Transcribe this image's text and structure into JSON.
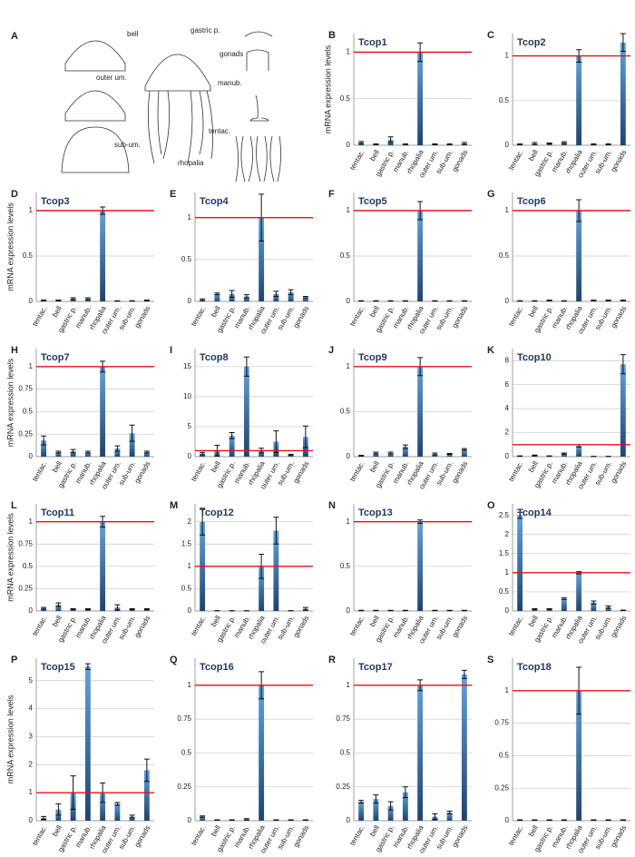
{
  "diagram": {
    "panel": "A",
    "labels": [
      "bell",
      "gastric p.",
      "gonads",
      "outer um.",
      "manub.",
      "sub-um.",
      "tentac.",
      "rhopalia"
    ]
  },
  "chart_data": [
    {
      "type": "bar",
      "panel": "B",
      "title": "Tcop1",
      "y_label": "mRNA expression levels",
      "categories": [
        "tentac.",
        "bell",
        "gastric p.",
        "manub.",
        "rhopalia",
        "outer um.",
        "sub-um.",
        "gonads"
      ],
      "values": [
        0.03,
        0.01,
        0.06,
        0.01,
        1.0,
        0.01,
        0.01,
        0.02
      ],
      "errors": [
        0.01,
        0.005,
        0.03,
        0.005,
        0.1,
        0.005,
        0.005,
        0.01
      ],
      "ylim": [
        0,
        1.2
      ],
      "yticks": [
        0,
        0.5,
        1
      ],
      "grid": true,
      "reference_line": 1,
      "reference_color": "#e8101a"
    },
    {
      "type": "bar",
      "panel": "C",
      "title": "Tcop2",
      "categories": [
        "tentac.",
        "bell",
        "gastric p.",
        "manub.",
        "rhopalia",
        "outer um.",
        "sub-um.",
        "gonads"
      ],
      "values": [
        0.01,
        0.02,
        0.02,
        0.03,
        1.0,
        0.01,
        0.01,
        1.15
      ],
      "errors": [
        0.005,
        0.01,
        0.005,
        0.01,
        0.07,
        0.005,
        0.005,
        0.1
      ],
      "ylim": [
        0,
        1.25
      ],
      "yticks": [
        0,
        0.5,
        1
      ],
      "grid": true,
      "reference_line": 1,
      "reference_color": "#e8101a"
    },
    {
      "type": "bar",
      "panel": "D",
      "title": "Tcop3",
      "y_label": "mRNA expression levels",
      "categories": [
        "tentac.",
        "bell",
        "gastric p.",
        "manub.",
        "rhopalia",
        "outer um.",
        "sub-um.",
        "gonads"
      ],
      "values": [
        0.01,
        0.01,
        0.03,
        0.03,
        1.0,
        0.005,
        0.005,
        0.01
      ],
      "errors": [
        0.005,
        0.005,
        0.01,
        0.01,
        0.04,
        0.002,
        0.002,
        0.005
      ],
      "ylim": [
        0,
        1.2
      ],
      "yticks": [
        0,
        0.5,
        1
      ],
      "grid": true,
      "reference_line": 1,
      "reference_color": "#e8101a"
    },
    {
      "type": "bar",
      "panel": "E",
      "title": "Tcop4",
      "categories": [
        "tentac.",
        "bell",
        "gastric p.",
        "manub.",
        "rhopalia",
        "outer um.",
        "sub-um.",
        "gonads"
      ],
      "values": [
        0.02,
        0.09,
        0.09,
        0.06,
        1.0,
        0.09,
        0.11,
        0.05
      ],
      "errors": [
        0.01,
        0.01,
        0.04,
        0.02,
        0.28,
        0.03,
        0.03,
        0.01
      ],
      "ylim": [
        0,
        1.3
      ],
      "yticks": [
        0,
        0.5,
        1
      ],
      "grid": true,
      "reference_line": 1,
      "reference_color": "#e8101a"
    },
    {
      "type": "bar",
      "panel": "F",
      "title": "Tcop5",
      "categories": [
        "tentac.",
        "bell",
        "gastric p.",
        "manub.",
        "rhopalia",
        "outer um.",
        "sub-um.",
        "gonads"
      ],
      "values": [
        0.005,
        0.005,
        0.005,
        0.005,
        1.0,
        0.005,
        0.005,
        0.005
      ],
      "errors": [
        0.002,
        0.002,
        0.002,
        0.002,
        0.1,
        0.002,
        0.002,
        0.002
      ],
      "ylim": [
        0,
        1.2
      ],
      "yticks": [
        0,
        0.5,
        1
      ],
      "grid": true,
      "reference_line": 1,
      "reference_color": "#e8101a"
    },
    {
      "type": "bar",
      "panel": "G",
      "title": "Tcop6",
      "categories": [
        "tentac.",
        "bell",
        "gastric p.",
        "manub.",
        "rhopalia",
        "outer um.",
        "sub-um.",
        "gonads"
      ],
      "values": [
        0.005,
        0.005,
        0.01,
        0.005,
        1.0,
        0.01,
        0.01,
        0.01
      ],
      "errors": [
        0.002,
        0.002,
        0.005,
        0.002,
        0.12,
        0.005,
        0.005,
        0.005
      ],
      "ylim": [
        0,
        1.2
      ],
      "yticks": [
        0,
        0.5,
        1
      ],
      "grid": true,
      "reference_line": 1,
      "reference_color": "#e8101a"
    },
    {
      "type": "bar",
      "panel": "H",
      "title": "Tcop7",
      "y_label": "mRNA expression levels",
      "categories": [
        "tentac.",
        "bell",
        "gastric p.",
        "manub.",
        "rhopalia",
        "outer um.",
        "sub-um.",
        "gonads"
      ],
      "values": [
        0.18,
        0.05,
        0.06,
        0.05,
        1.0,
        0.09,
        0.26,
        0.05
      ],
      "errors": [
        0.05,
        0.01,
        0.02,
        0.01,
        0.06,
        0.03,
        0.09,
        0.01
      ],
      "ylim": [
        0,
        1.2
      ],
      "yticks": [
        0,
        0.25,
        0.5,
        0.75,
        1
      ],
      "grid": true,
      "reference_line": 1,
      "reference_color": "#e8101a"
    },
    {
      "type": "bar",
      "panel": "I",
      "title": "Tcop8",
      "categories": [
        "tentac.",
        "bell",
        "gastric p.",
        "manub.",
        "rhopalia",
        "outer um.",
        "sub-um.",
        "gonads"
      ],
      "values": [
        0.5,
        1.0,
        3.5,
        15,
        1.0,
        2.5,
        0.3,
        3.3
      ],
      "errors": [
        0.2,
        0.9,
        0.5,
        1.6,
        0.4,
        1.8,
        0.1,
        1.8
      ],
      "ylim": [
        0,
        18
      ],
      "yticks": [
        0,
        5,
        10,
        15
      ],
      "grid": true,
      "reference_line": 1,
      "reference_color": "#e8101a"
    },
    {
      "type": "bar",
      "panel": "J",
      "title": "Tcop9",
      "categories": [
        "tentac.",
        "bell",
        "gastric p.",
        "manub.",
        "rhopalia",
        "outer um.",
        "sub-um.",
        "gonads"
      ],
      "values": [
        0.01,
        0.04,
        0.04,
        0.11,
        1.0,
        0.03,
        0.03,
        0.08
      ],
      "errors": [
        0.005,
        0.01,
        0.01,
        0.02,
        0.1,
        0.01,
        0.005,
        0.01
      ],
      "ylim": [
        0,
        1.2
      ],
      "yticks": [
        0,
        0.5,
        1
      ],
      "grid": true,
      "reference_line": 1,
      "reference_color": "#e8101a"
    },
    {
      "type": "bar",
      "panel": "K",
      "title": "Tcop10",
      "categories": [
        "tentac.",
        "bell",
        "gastric p.",
        "manub.",
        "rhopalia",
        "outer um.",
        "sub-um.",
        "gonads"
      ],
      "values": [
        0.05,
        0.1,
        0.05,
        0.25,
        0.9,
        0.02,
        0.02,
        7.7
      ],
      "errors": [
        0.02,
        0.03,
        0.02,
        0.05,
        0.1,
        0.01,
        0.01,
        0.8
      ],
      "ylim": [
        0,
        9
      ],
      "yticks": [
        0,
        2,
        4,
        6,
        8
      ],
      "grid": true,
      "reference_line": 1,
      "reference_color": "#e8101a"
    },
    {
      "type": "bar",
      "panel": "L",
      "title": "Tcop11",
      "y_label": "mRNA expression levels",
      "categories": [
        "tentac.",
        "bell",
        "gastric p.",
        "manub.",
        "rhopalia",
        "outer um.",
        "sub-um.",
        "gonads"
      ],
      "values": [
        0.03,
        0.07,
        0.02,
        0.02,
        1.0,
        0.04,
        0.02,
        0.02
      ],
      "errors": [
        0.01,
        0.02,
        0.005,
        0.005,
        0.06,
        0.03,
        0.005,
        0.005
      ],
      "ylim": [
        0,
        1.2
      ],
      "yticks": [
        0,
        0.25,
        0.5,
        0.75,
        1
      ],
      "grid": true,
      "reference_line": 1,
      "reference_color": "#e8101a"
    },
    {
      "type": "bar",
      "panel": "M",
      "title": "Tcop12",
      "categories": [
        "tentac.",
        "bell",
        "gastric p.",
        "manub.",
        "rhopalia",
        "outer um.",
        "sub-um.",
        "gonads"
      ],
      "values": [
        2.0,
        0.005,
        0.005,
        0.005,
        1.0,
        1.8,
        0.005,
        0.05
      ],
      "errors": [
        0.3,
        0.002,
        0.002,
        0.002,
        0.27,
        0.3,
        0.002,
        0.03
      ],
      "ylim": [
        0,
        2.4
      ],
      "yticks": [
        0,
        0.5,
        1,
        1.5,
        2
      ],
      "grid": true,
      "reference_line": 1,
      "reference_color": "#e8101a"
    },
    {
      "type": "bar",
      "panel": "N",
      "title": "Tcop13",
      "categories": [
        "tentac.",
        "bell",
        "gastric p.",
        "manub.",
        "rhopalia",
        "outer um.",
        "sub-um.",
        "gonads"
      ],
      "values": [
        0.005,
        0.005,
        0.005,
        0.005,
        1.0,
        0.005,
        0.005,
        0.005
      ],
      "errors": [
        0.002,
        0.002,
        0.002,
        0.002,
        0.02,
        0.002,
        0.002,
        0.002
      ],
      "ylim": [
        0,
        1.2
      ],
      "yticks": [
        0,
        0.5,
        1
      ],
      "grid": true,
      "reference_line": 1,
      "reference_color": "#e8101a"
    },
    {
      "type": "bar",
      "panel": "O",
      "title": "Tcop14",
      "categories": [
        "tentac.",
        "bell",
        "gastric p.",
        "manub.",
        "rhopalia",
        "outer um.",
        "sub-um.",
        "gonads"
      ],
      "values": [
        2.5,
        0.05,
        0.05,
        0.32,
        1.0,
        0.22,
        0.1,
        0.02
      ],
      "errors": [
        0.08,
        0.01,
        0.01,
        0.02,
        0.03,
        0.04,
        0.03,
        0.005
      ],
      "ylim": [
        0,
        2.8
      ],
      "yticks": [
        0,
        0.5,
        1,
        1.5,
        2,
        2.5
      ],
      "grid": true,
      "reference_line": 1,
      "reference_color": "#e8101a"
    },
    {
      "type": "bar",
      "panel": "P",
      "title": "Tcop15",
      "y_label": "mRNA expression levels",
      "categories": [
        "tentac.",
        "bell",
        "gastric p.",
        "manub.",
        "rhopalia",
        "outer um.",
        "sub-um.",
        "gonads"
      ],
      "values": [
        0.1,
        0.4,
        1.0,
        5.5,
        1.0,
        0.6,
        0.15,
        1.8
      ],
      "errors": [
        0.05,
        0.2,
        0.6,
        0.1,
        0.35,
        0.05,
        0.05,
        0.4
      ],
      "ylim": [
        0,
        5.8
      ],
      "yticks": [
        0,
        1,
        2,
        3,
        4,
        5
      ],
      "grid": true,
      "reference_line": 1,
      "reference_color": "#e8101a"
    },
    {
      "type": "bar",
      "panel": "Q",
      "title": "Tcop16",
      "categories": [
        "tentac.",
        "bell",
        "gastric p.",
        "manub.",
        "rhopalia",
        "outer um.",
        "sub-um.",
        "gonads"
      ],
      "values": [
        0.03,
        0.005,
        0.005,
        0.01,
        1.0,
        0.005,
        0.005,
        0.005
      ],
      "errors": [
        0.005,
        0.002,
        0.002,
        0.005,
        0.1,
        0.002,
        0.002,
        0.002
      ],
      "ylim": [
        0,
        1.2
      ],
      "yticks": [
        0,
        0.25,
        0.5,
        0.75,
        1
      ],
      "grid": true,
      "reference_line": 1,
      "reference_color": "#e8101a"
    },
    {
      "type": "bar",
      "panel": "R",
      "title": "Tcop17",
      "categories": [
        "tentac.",
        "bell",
        "gastric p.",
        "manub.",
        "rhopalia",
        "outer um.",
        "sub-um.",
        "gonads"
      ],
      "values": [
        0.14,
        0.16,
        0.11,
        0.21,
        1.0,
        0.03,
        0.06,
        1.08
      ],
      "errors": [
        0.01,
        0.03,
        0.03,
        0.04,
        0.04,
        0.02,
        0.01,
        0.03
      ],
      "ylim": [
        0,
        1.2
      ],
      "yticks": [
        0,
        0.25,
        0.5,
        0.75,
        1
      ],
      "grid": true,
      "reference_line": 1,
      "reference_color": "#e8101a"
    },
    {
      "type": "bar",
      "panel": "S",
      "title": "Tcop18",
      "categories": [
        "tentac.",
        "bell",
        "gastric p.",
        "manub.",
        "rhopalia",
        "outer um.",
        "sub-um.",
        "gonads"
      ],
      "values": [
        0.005,
        0.005,
        0.005,
        0.005,
        1.0,
        0.005,
        0.005,
        0.005
      ],
      "errors": [
        0.002,
        0.002,
        0.002,
        0.002,
        0.18,
        0.002,
        0.002,
        0.002
      ],
      "ylim": [
        0,
        1.25
      ],
      "yticks": [
        0,
        0.25,
        0.5,
        0.75,
        1
      ],
      "grid": true,
      "reference_line": 1,
      "reference_color": "#e8101a"
    }
  ]
}
